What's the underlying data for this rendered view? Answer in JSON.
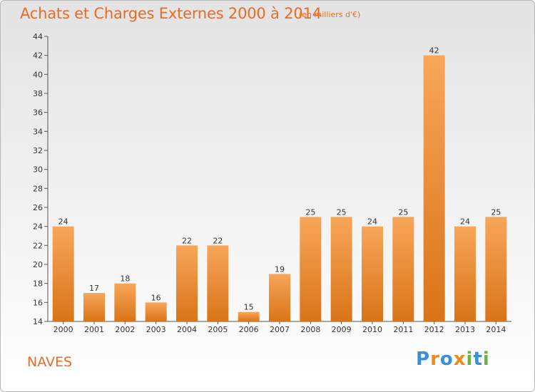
{
  "header": {
    "title": "Achats et Charges Externes 2000 à 2014",
    "unit_note": "(en milliers d'€)"
  },
  "footer": {
    "town": "NAVES",
    "brand": "Proxiti",
    "brand_letters": [
      {
        "ch": "P",
        "color": "#3a8fd6"
      },
      {
        "ch": "r",
        "color": "#f08a1e"
      },
      {
        "ch": "o",
        "color": "#3a8fd6"
      },
      {
        "ch": "x",
        "color": "#f08a1e"
      },
      {
        "ch": "i",
        "color": "#6cb33f"
      },
      {
        "ch": "t",
        "color": "#3a8fd6"
      },
      {
        "ch": "i",
        "color": "#6cb33f"
      }
    ]
  },
  "colors": {
    "title": "#ee6a22",
    "bar_light": "#f8a65a",
    "bar_dark": "#d97418"
  },
  "chart_data": {
    "type": "bar",
    "title": "Achats et Charges Externes 2000 à 2014",
    "subtitle": "(en milliers d'€)",
    "categories": [
      "2000",
      "2001",
      "2002",
      "2003",
      "2004",
      "2005",
      "2006",
      "2007",
      "2008",
      "2009",
      "2010",
      "2011",
      "2012",
      "2013",
      "2014"
    ],
    "values": [
      24,
      17,
      18,
      16,
      22,
      22,
      15,
      19,
      25,
      25,
      24,
      25,
      42,
      24,
      25
    ],
    "yticks": [
      14,
      16,
      18,
      20,
      22,
      24,
      26,
      28,
      30,
      32,
      34,
      36,
      38,
      40,
      42,
      44
    ],
    "ylim": [
      14,
      44
    ],
    "grid": false,
    "legend": "none"
  }
}
